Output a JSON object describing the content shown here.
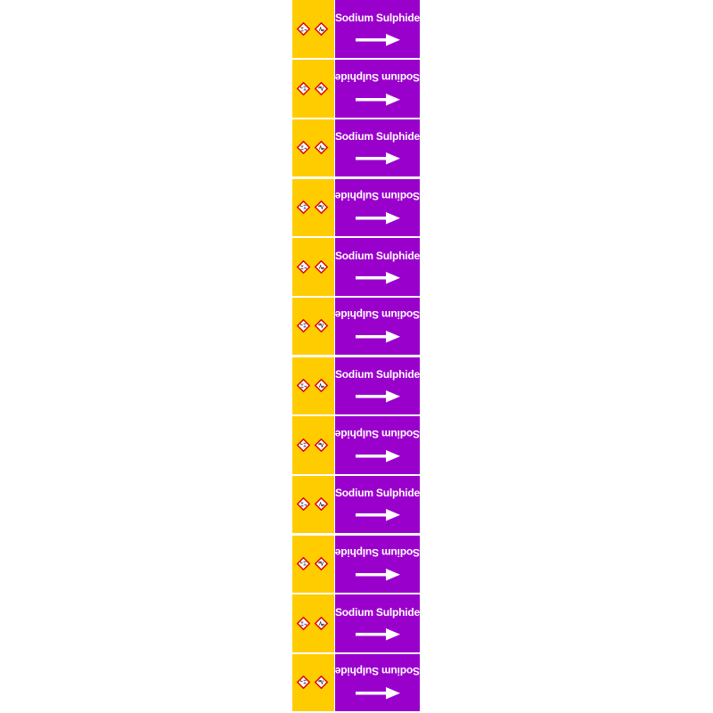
{
  "label": {
    "text": "Sodium Sulphide",
    "count": 12,
    "direction": "right",
    "colors": {
      "band": "#ffcc00",
      "field": "#9a00cc",
      "text": "#ffffff",
      "pictogram_border": "#e00000"
    },
    "pictograms": [
      "ghs05-corrosion-icon",
      "ghs09-environment-icon"
    ]
  }
}
